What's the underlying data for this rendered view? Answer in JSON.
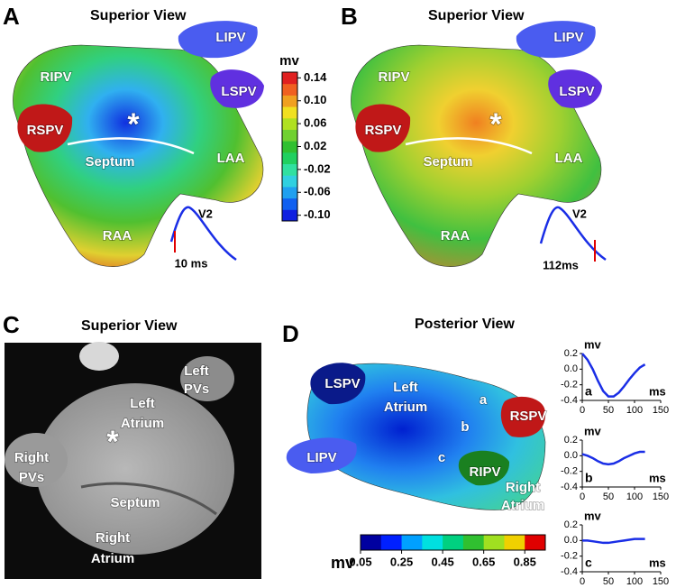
{
  "panels": [
    {
      "letter": "A",
      "title": "Superior View",
      "labels": [
        "LIPV",
        "RIPV",
        "LSPV",
        "RSPV",
        "*",
        "Septum",
        "LAA",
        "RAA"
      ],
      "trace_label": "V2",
      "time": "10 ms"
    },
    {
      "letter": "B",
      "title": "Superior View",
      "labels": [
        "LIPV",
        "RIPV",
        "LSPV",
        "RSPV",
        "*",
        "Septum",
        "LAA",
        "RAA"
      ],
      "trace_label": "V2",
      "time": "112ms"
    },
    {
      "letter": "C",
      "title": "Superior View",
      "labels": [
        [
          "Left",
          "PVs"
        ],
        [
          "Left",
          "Atrium"
        ],
        [
          "Right",
          "PVs"
        ],
        [
          "*"
        ],
        [
          "Septum"
        ],
        [
          "Right",
          "Atrium"
        ]
      ]
    },
    {
      "letter": "D",
      "title": "Posterior View",
      "labels": [
        [
          "LSPV"
        ],
        [
          "Left",
          "Atrium"
        ],
        [
          "a"
        ],
        [
          "RSPV"
        ],
        [
          "b"
        ],
        [
          "LIPV"
        ],
        [
          "c"
        ],
        [
          "RIPV"
        ],
        [
          "Right",
          "Atrium"
        ]
      ]
    }
  ],
  "colorbars": [
    {
      "title": "mv",
      "lim": [
        -0.11,
        0.15
      ],
      "ticks": [
        0.14,
        {
          "value": 0.1,
          "label": "0.10"
        },
        0.06,
        0.02,
        -0.02,
        -0.06,
        {
          "value": -0.1,
          "label": "-0.10"
        }
      ],
      "colors": [
        "#1020e0",
        "#1060f0",
        "#20a0f0",
        "#30d0e0",
        "#30e0a0",
        "#20d060",
        "#30c030",
        "#70d030",
        "#b0e020",
        "#f0e020",
        "#f0a020",
        "#f06020",
        "#e02020"
      ]
    },
    {
      "title": "mv",
      "lim": [
        0.05,
        0.95
      ],
      "ticks": [
        0.05,
        0.25,
        0.45,
        0.65,
        0.85
      ],
      "colors": [
        "#0000a0",
        "#0020ff",
        "#00a0ff",
        "#00e0e0",
        "#00d080",
        "#30c030",
        "#a0e020",
        "#f0d000",
        "#e00000"
      ]
    }
  ],
  "chart_data": [
    {
      "type": "line",
      "panel_label": "a",
      "y_label": "mv",
      "x_label": "ms",
      "color": "#1a2ee6",
      "x": [
        0,
        10,
        20,
        30,
        40,
        50,
        60,
        70,
        80,
        90,
        100,
        110,
        120
      ],
      "values": [
        0.2,
        0.12,
        0.0,
        -0.15,
        -0.28,
        -0.35,
        -0.35,
        -0.3,
        -0.22,
        -0.13,
        -0.05,
        0.02,
        0.06
      ],
      "xlim": [
        0,
        150
      ],
      "xticks": [
        0,
        50,
        100,
        150
      ],
      "ylim": [
        -0.4,
        0.2
      ],
      "yticks": [
        0.2,
        {
          "value": 0,
          "label": "0.0"
        },
        -0.2,
        -0.4
      ]
    },
    {
      "type": "line",
      "panel_label": "b",
      "y_label": "mv",
      "x_label": "ms",
      "color": "#1a2ee6",
      "x": [
        0,
        10,
        20,
        30,
        40,
        50,
        60,
        70,
        80,
        90,
        100,
        110,
        120
      ],
      "values": [
        0.02,
        0.0,
        -0.03,
        -0.07,
        -0.1,
        -0.11,
        -0.1,
        -0.07,
        -0.03,
        0.0,
        0.03,
        0.05,
        0.05
      ],
      "xlim": [
        0,
        150
      ],
      "xticks": [
        0,
        50,
        100,
        150
      ],
      "ylim": [
        -0.4,
        0.2
      ],
      "yticks": [
        0.2,
        {
          "value": 0,
          "label": "0.0"
        },
        -0.2,
        -0.4
      ]
    },
    {
      "type": "line",
      "panel_label": "c",
      "y_label": "mv",
      "x_label": "ms",
      "color": "#1a2ee6",
      "x": [
        0,
        10,
        20,
        30,
        40,
        50,
        60,
        70,
        80,
        90,
        100,
        110,
        120
      ],
      "values": [
        0.0,
        0.0,
        -0.01,
        -0.02,
        -0.03,
        -0.03,
        -0.02,
        -0.01,
        0.0,
        0.01,
        0.02,
        0.02,
        0.02
      ],
      "xlim": [
        0,
        150
      ],
      "xticks": [
        0,
        50,
        100,
        150
      ],
      "ylim": [
        -0.4,
        0.2
      ],
      "yticks": [
        0.2,
        {
          "value": 0,
          "label": "0.0"
        },
        -0.2,
        -0.4
      ]
    }
  ]
}
